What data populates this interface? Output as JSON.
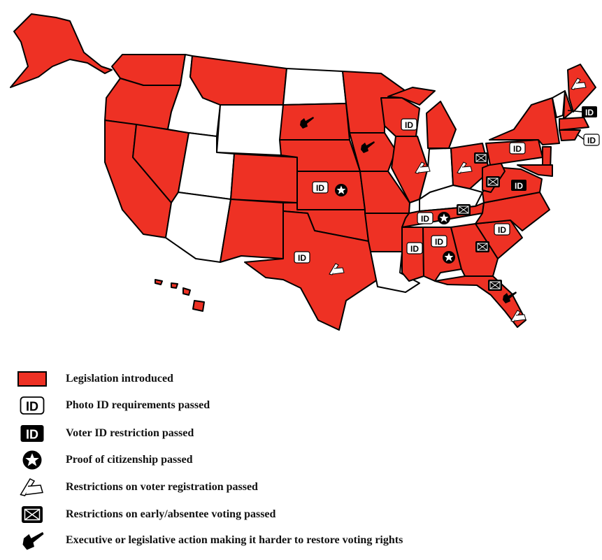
{
  "colors": {
    "introduced": "#ee3124",
    "none": "#ffffff",
    "border": "#000000"
  },
  "states": {
    "AK": "introduced",
    "WA": "introduced",
    "OR": "introduced",
    "CA": "introduced",
    "NV": "introduced",
    "ID": "none",
    "MT": "introduced",
    "WY": "none",
    "UT": "none",
    "AZ": "none",
    "CO": "introduced",
    "NM": "introduced",
    "ND": "none",
    "SD": "introduced",
    "NE": "introduced",
    "KS": "introduced",
    "OK": "introduced",
    "TX": "introduced",
    "MN": "introduced",
    "IA": "introduced",
    "MO": "introduced",
    "AR": "introduced",
    "LA": "none",
    "WI": "introduced",
    "IL": "introduced",
    "MI": "introduced",
    "IN": "none",
    "OH": "introduced",
    "KY": "none",
    "TN": "introduced",
    "MS": "introduced",
    "AL": "introduced",
    "GA": "introduced",
    "FL": "introduced",
    "SC": "introduced",
    "NC": "introduced",
    "VA": "introduced",
    "WV": "introduced",
    "PA": "introduced",
    "NY": "introduced",
    "VT": "none",
    "NH": "introduced",
    "ME": "introduced",
    "MA": "introduced",
    "CT": "introduced",
    "NJ": "introduced",
    "MD": "introduced",
    "HI": "introduced"
  },
  "markers": {
    "WI": [
      "photo-id"
    ],
    "SD": [
      "gavel"
    ],
    "IA": [
      "gavel"
    ],
    "KS": [
      "photo-id",
      "citizenship"
    ],
    "IL": [
      "registration"
    ],
    "OH": [
      "registration",
      "absentee"
    ],
    "PA": [
      "photo-id"
    ],
    "WV": [
      "absentee"
    ],
    "VA": [
      "voter-id"
    ],
    "TN": [
      "photo-id",
      "citizenship",
      "absentee"
    ],
    "NC": [
      "photo-id"
    ],
    "MS": [
      "photo-id"
    ],
    "AL": [
      "photo-id",
      "citizenship"
    ],
    "GA": [
      "absentee"
    ],
    "TX": [
      "photo-id",
      "registration"
    ],
    "FL": [
      "absentee",
      "gavel",
      "registration"
    ],
    "ME": [
      "registration"
    ],
    "NH": [
      "voter-id"
    ],
    "RI": [
      "photo-id"
    ]
  },
  "legend": [
    {
      "icon": "introduced",
      "label": "Legislation introduced"
    },
    {
      "icon": "photo-id",
      "label": "Photo ID requirements passed"
    },
    {
      "icon": "voter-id",
      "label": "Voter ID restriction passed"
    },
    {
      "icon": "citizenship",
      "label": "Proof of citizenship passed"
    },
    {
      "icon": "registration",
      "label": "Restrictions on voter registration passed"
    },
    {
      "icon": "absentee",
      "label": "Restrictions on early/absentee voting passed"
    },
    {
      "icon": "gavel",
      "label": "Executive or legislative action making it harder to restore voting rights"
    }
  ]
}
